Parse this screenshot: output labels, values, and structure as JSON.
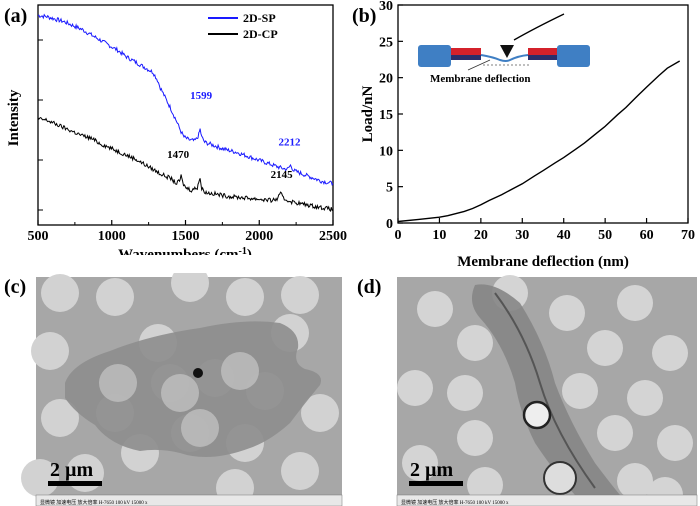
{
  "panels": {
    "a": {
      "label": "(a)"
    },
    "b": {
      "label": "(b)"
    },
    "c": {
      "label": "(c)",
      "scale_bar": "2 µm",
      "footer_text": "显微镜 加速电压 放大倍率   H-7650  100 kV  15000 x"
    },
    "d": {
      "label": "(d)",
      "scale_bar": "2 µm",
      "footer_text": "显微镜 加速电压 放大倍率   H-7650  100 kV  15000 x"
    }
  },
  "chart_data": [
    {
      "type": "line",
      "panel": "a",
      "xlabel_main": "Wavenumbers (cm",
      "xlabel_sup": "-1",
      "xlabel_close": ")",
      "ylabel": "Intensity",
      "xlim": [
        500,
        2500
      ],
      "xticks": [
        "500",
        "1000",
        "1500",
        "2000",
        "2500"
      ],
      "legend_position": "top-right",
      "series": [
        {
          "name": "2D-SP",
          "color": "#1a1aff",
          "x": [
            500,
            560,
            620,
            680,
            740,
            800,
            860,
            920,
            980,
            1040,
            1100,
            1160,
            1220,
            1280,
            1310,
            1330,
            1360,
            1400,
            1440,
            1470,
            1490,
            1520,
            1560,
            1580,
            1590,
            1599,
            1610,
            1630,
            1680,
            1750,
            1850,
            1950,
            2050,
            2150,
            2190,
            2212,
            2235,
            2280,
            2350,
            2420,
            2500
          ],
          "y": [
            150,
            149,
            147,
            145,
            142,
            139,
            135,
            131,
            127,
            123,
            118,
            114,
            110,
            106,
            100,
            94,
            87,
            78,
            68,
            60,
            56,
            54,
            53,
            55,
            58,
            62,
            56,
            52,
            50,
            47,
            44,
            40,
            36,
            32,
            31,
            34,
            30,
            28,
            25,
            22,
            20
          ]
        },
        {
          "name": "2D-CP",
          "color": "#000000",
          "x": [
            500,
            560,
            620,
            680,
            740,
            800,
            860,
            920,
            980,
            1040,
            1100,
            1160,
            1220,
            1280,
            1340,
            1400,
            1440,
            1460,
            1470,
            1480,
            1500,
            1540,
            1580,
            1590,
            1599,
            1610,
            1640,
            1700,
            1800,
            1900,
            2000,
            2080,
            2120,
            2145,
            2170,
            2220,
            2300,
            2400,
            2500
          ],
          "y": [
            70,
            69,
            66,
            63,
            60,
            57,
            55,
            51,
            48,
            45,
            42,
            39,
            35,
            31,
            27,
            24,
            20,
            22,
            26,
            21,
            17,
            15,
            17,
            22,
            24,
            16,
            13,
            12,
            10,
            9,
            8,
            7,
            8,
            12,
            8,
            6,
            4,
            2,
            0
          ]
        }
      ],
      "annotations": [
        {
          "text": "1599",
          "color": "#1a1aff",
          "x": 1599
        },
        {
          "text": "2212",
          "color": "#1a1aff",
          "x": 2212
        },
        {
          "text": "1470",
          "color": "#000000",
          "x": 1470
        },
        {
          "text": "2145",
          "color": "#000000",
          "x": 2145
        }
      ]
    },
    {
      "type": "line",
      "panel": "b",
      "xlabel": "Membrane deflection (nm)",
      "ylabel": "Load/nN",
      "xlim": [
        0,
        70
      ],
      "ylim": [
        0,
        30
      ],
      "xticks": [
        "0",
        "10",
        "20",
        "30",
        "40",
        "50",
        "60",
        "70"
      ],
      "yticks": [
        "0",
        "5",
        "10",
        "15",
        "20",
        "25",
        "30"
      ],
      "inset_label": "Membrane deflection",
      "series": [
        {
          "name": "",
          "color": "#000000",
          "x": [
            0,
            5,
            10,
            12,
            14,
            16,
            18,
            20,
            22,
            25,
            28,
            30,
            33,
            35,
            38,
            40,
            43,
            45,
            48,
            50,
            53,
            55,
            58,
            60,
            63,
            65,
            68
          ],
          "y": [
            0.2,
            0.5,
            0.8,
            1.0,
            1.3,
            1.6,
            2.0,
            2.5,
            3.1,
            3.9,
            4.8,
            5.4,
            6.5,
            7.2,
            8.3,
            9.0,
            10.2,
            11.0,
            12.4,
            13.3,
            14.9,
            15.9,
            17.6,
            18.7,
            20.3,
            21.3,
            22.3
          ]
        }
      ]
    }
  ]
}
